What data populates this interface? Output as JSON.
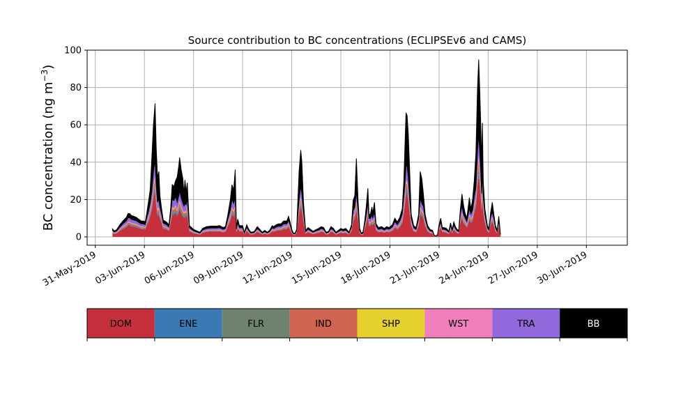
{
  "chart_data": {
    "type": "area",
    "stacked": true,
    "title": "Source contribution to BC concentrations (ECLIPSEv6 and CAMS)",
    "ylabel_main": "BC concentration (ng m",
    "ylabel_sup": "−3",
    "ylabel_close": ")",
    "xlabel": "",
    "ylim": [
      0,
      100
    ],
    "yticks": [
      0,
      20,
      40,
      60,
      80,
      100
    ],
    "xlim_days": [
      -0.5,
      32.5
    ],
    "xticks": [
      {
        "day": 0,
        "label": "31-May-2019"
      },
      {
        "day": 3,
        "label": "03-Jun-2019"
      },
      {
        "day": 6,
        "label": "06-Jun-2019"
      },
      {
        "day": 9,
        "label": "09-Jun-2019"
      },
      {
        "day": 12,
        "label": "12-Jun-2019"
      },
      {
        "day": 15,
        "label": "15-Jun-2019"
      },
      {
        "day": 18,
        "label": "18-Jun-2019"
      },
      {
        "day": 21,
        "label": "21-Jun-2019"
      },
      {
        "day": 24,
        "label": "24-Jun-2019"
      },
      {
        "day": 27,
        "label": "27-Jun-2019"
      },
      {
        "day": 30,
        "label": "30-Jun-2019"
      }
    ],
    "grid": true,
    "legend_placement": "colorbar below plot",
    "total_profile": [
      [
        1.05,
        4.3
      ],
      [
        1.15,
        3.2
      ],
      [
        1.3,
        3.8
      ],
      [
        1.5,
        6.5
      ],
      [
        1.7,
        8.7
      ],
      [
        1.9,
        10.5
      ],
      [
        2.0,
        12.5
      ],
      [
        2.1,
        12.5
      ],
      [
        2.2,
        11.5
      ],
      [
        2.35,
        11.0
      ],
      [
        2.5,
        10.5
      ],
      [
        2.65,
        9.5
      ],
      [
        2.8,
        8.5
      ],
      [
        2.95,
        8.5
      ],
      [
        3.05,
        8.0
      ],
      [
        3.15,
        13.0
      ],
      [
        3.25,
        19.0
      ],
      [
        3.35,
        25.0
      ],
      [
        3.45,
        42.0
      ],
      [
        3.55,
        60.0
      ],
      [
        3.65,
        71.5
      ],
      [
        3.72,
        48.0
      ],
      [
        3.8,
        32.0
      ],
      [
        3.88,
        35.0
      ],
      [
        3.95,
        22.0
      ],
      [
        4.05,
        15.0
      ],
      [
        4.15,
        9.0
      ],
      [
        4.35,
        8.0
      ],
      [
        4.5,
        6.5
      ],
      [
        4.6,
        15.0
      ],
      [
        4.7,
        28.0
      ],
      [
        4.8,
        27.0
      ],
      [
        4.9,
        30.0
      ],
      [
        5.0,
        32.0
      ],
      [
        5.1,
        38.0
      ],
      [
        5.15,
        42.5
      ],
      [
        5.25,
        36.0
      ],
      [
        5.35,
        31.0
      ],
      [
        5.42,
        23.0
      ],
      [
        5.48,
        30.5
      ],
      [
        5.55,
        24.0
      ],
      [
        5.62,
        29.0
      ],
      [
        5.68,
        18.0
      ],
      [
        5.75,
        6.0
      ],
      [
        6.0,
        4.0
      ],
      [
        6.25,
        3.0
      ],
      [
        6.4,
        2.5
      ],
      [
        6.55,
        4.5
      ],
      [
        6.8,
        5.5
      ],
      [
        7.1,
        5.8
      ],
      [
        7.4,
        5.8
      ],
      [
        7.6,
        6.0
      ],
      [
        7.8,
        5.0
      ],
      [
        7.95,
        5.5
      ],
      [
        8.1,
        12.0
      ],
      [
        8.25,
        20.0
      ],
      [
        8.35,
        28.0
      ],
      [
        8.45,
        25.0
      ],
      [
        8.55,
        36.0
      ],
      [
        8.62,
        5.0
      ],
      [
        8.7,
        9.5
      ],
      [
        8.8,
        6.0
      ],
      [
        9.0,
        6.0
      ],
      [
        9.1,
        2.5
      ],
      [
        9.25,
        6.5
      ],
      [
        9.35,
        4.5
      ],
      [
        9.5,
        2.5
      ],
      [
        9.7,
        2.8
      ],
      [
        9.9,
        5.5
      ],
      [
        10.05,
        4.0
      ],
      [
        10.2,
        2.5
      ],
      [
        10.35,
        3.5
      ],
      [
        10.5,
        2.5
      ],
      [
        10.65,
        3.5
      ],
      [
        10.8,
        6.0
      ],
      [
        10.9,
        5.5
      ],
      [
        11.05,
        6.5
      ],
      [
        11.2,
        7.0
      ],
      [
        11.35,
        7.0
      ],
      [
        11.5,
        8.5
      ],
      [
        11.7,
        8.5
      ],
      [
        11.8,
        11.0
      ],
      [
        11.9,
        8.0
      ],
      [
        12.0,
        4.0
      ],
      [
        12.1,
        2.0
      ],
      [
        12.2,
        2.0
      ],
      [
        12.3,
        4.0
      ],
      [
        12.45,
        35.0
      ],
      [
        12.55,
        46.5
      ],
      [
        12.62,
        40.0
      ],
      [
        12.72,
        18.0
      ],
      [
        12.85,
        3.5
      ],
      [
        13.0,
        5.0
      ],
      [
        13.15,
        4.0
      ],
      [
        13.3,
        3.0
      ],
      [
        13.5,
        4.0
      ],
      [
        13.65,
        4.5
      ],
      [
        13.8,
        5.5
      ],
      [
        13.95,
        5.0
      ],
      [
        14.1,
        2.5
      ],
      [
        14.25,
        3.0
      ],
      [
        14.4,
        5.5
      ],
      [
        14.55,
        4.5
      ],
      [
        14.7,
        2.5
      ],
      [
        14.85,
        3.5
      ],
      [
        15.0,
        4.5
      ],
      [
        15.15,
        4.0
      ],
      [
        15.3,
        4.5
      ],
      [
        15.5,
        2.5
      ],
      [
        15.65,
        6.5
      ],
      [
        15.75,
        19.5
      ],
      [
        15.85,
        22.0
      ],
      [
        15.95,
        42.0
      ],
      [
        16.05,
        20.0
      ],
      [
        16.15,
        4.5
      ],
      [
        16.25,
        2.0
      ],
      [
        16.35,
        2.5
      ],
      [
        16.45,
        8.0
      ],
      [
        16.55,
        16.0
      ],
      [
        16.65,
        26.0
      ],
      [
        16.72,
        12.0
      ],
      [
        16.8,
        12.0
      ],
      [
        16.9,
        16.0
      ],
      [
        16.95,
        12.5
      ],
      [
        17.05,
        18.5
      ],
      [
        17.15,
        7.0
      ],
      [
        17.3,
        5.0
      ],
      [
        17.5,
        5.5
      ],
      [
        17.65,
        4.5
      ],
      [
        17.8,
        5.5
      ],
      [
        17.95,
        5.0
      ],
      [
        18.15,
        6.5
      ],
      [
        18.3,
        10.0
      ],
      [
        18.45,
        8.0
      ],
      [
        18.6,
        10.5
      ],
      [
        18.75,
        15.0
      ],
      [
        18.85,
        30.0
      ],
      [
        18.92,
        50.0
      ],
      [
        18.98,
        66.5
      ],
      [
        19.05,
        65.0
      ],
      [
        19.12,
        55.0
      ],
      [
        19.2,
        36.0
      ],
      [
        19.3,
        12.0
      ],
      [
        19.45,
        6.0
      ],
      [
        19.6,
        5.0
      ],
      [
        19.75,
        12.0
      ],
      [
        19.85,
        35.0
      ],
      [
        19.95,
        31.0
      ],
      [
        20.05,
        22.5
      ],
      [
        20.15,
        12.0
      ],
      [
        20.3,
        6.0
      ],
      [
        20.45,
        4.0
      ],
      [
        20.6,
        3.5
      ],
      [
        20.7,
        1.0
      ],
      [
        20.8,
        0.5
      ],
      [
        20.9,
        1.0
      ],
      [
        21.0,
        6.5
      ],
      [
        21.1,
        10.0
      ],
      [
        21.2,
        5.0
      ],
      [
        21.3,
        5.0
      ],
      [
        21.45,
        4.5
      ],
      [
        21.6,
        3.0
      ],
      [
        21.7,
        7.5
      ],
      [
        21.8,
        4.0
      ],
      [
        21.9,
        8.0
      ],
      [
        22.0,
        5.5
      ],
      [
        22.1,
        4.0
      ],
      [
        22.2,
        3.5
      ],
      [
        22.3,
        15.0
      ],
      [
        22.4,
        23.0
      ],
      [
        22.5,
        16.5
      ],
      [
        22.6,
        12.5
      ],
      [
        22.7,
        10.0
      ],
      [
        22.85,
        21.0
      ],
      [
        22.95,
        15.0
      ],
      [
        23.05,
        20.0
      ],
      [
        23.15,
        30.0
      ],
      [
        23.25,
        45.0
      ],
      [
        23.35,
        80.0
      ],
      [
        23.42,
        95.0
      ],
      [
        23.48,
        80.0
      ],
      [
        23.55,
        60.0
      ],
      [
        23.6,
        40.0
      ],
      [
        23.65,
        61.0
      ],
      [
        23.7,
        30.0
      ],
      [
        23.8,
        15.0
      ],
      [
        23.95,
        6.0
      ],
      [
        24.05,
        4.5
      ],
      [
        24.15,
        13.0
      ],
      [
        24.25,
        18.5
      ],
      [
        24.35,
        12.0
      ],
      [
        24.45,
        6.0
      ],
      [
        24.55,
        3.5
      ],
      [
        24.65,
        11.0
      ],
      [
        24.75,
        1.5
      ]
    ],
    "series": [
      {
        "name": "DOM",
        "color": "#c62f3c"
      },
      {
        "name": "ENE",
        "color": "#3a79b3"
      },
      {
        "name": "FLR",
        "color": "#6f8270"
      },
      {
        "name": "IND",
        "color": "#cf6450"
      },
      {
        "name": "SHP",
        "color": "#e6d02f"
      },
      {
        "name": "WST",
        "color": "#f07fbb"
      },
      {
        "name": "TRA",
        "color": "#9269db"
      },
      {
        "name": "BB",
        "color": "#000000"
      }
    ]
  },
  "legend": {
    "items": [
      "DOM",
      "ENE",
      "FLR",
      "IND",
      "SHP",
      "WST",
      "TRA",
      "BB"
    ],
    "text_colors": [
      "#000000",
      "#000000",
      "#000000",
      "#000000",
      "#000000",
      "#000000",
      "#000000",
      "#ffffff"
    ]
  }
}
